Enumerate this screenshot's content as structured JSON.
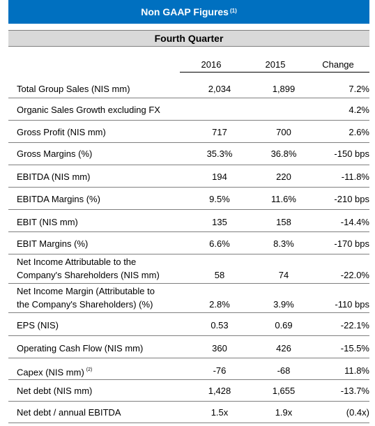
{
  "title": {
    "text": "Non GAAP Figures",
    "note": "(1)"
  },
  "period": "Fourth Quarter",
  "columns": [
    "2016",
    "2015",
    "Change"
  ],
  "rows": [
    {
      "label": "Total Group Sales (NIS mm)",
      "v2016": "2,034",
      "v2015": "1,899",
      "change": "7.2%"
    },
    {
      "label": "Organic Sales Growth excluding FX",
      "v2016": "",
      "v2015": "",
      "change": "4.2%"
    },
    {
      "label": "Gross Profit (NIS mm)",
      "v2016": "717",
      "v2015": "700",
      "change": "2.6%"
    },
    {
      "label": "Gross Margins (%)",
      "v2016": "35.3%",
      "v2015": "36.8%",
      "change": "-150 bps"
    },
    {
      "label": "EBITDA (NIS mm)",
      "v2016": "194",
      "v2015": "220",
      "change": "-11.8%"
    },
    {
      "label": "EBITDA Margins (%)",
      "v2016": "9.5%",
      "v2015": "11.6%",
      "change": "-210 bps"
    },
    {
      "label": "EBIT (NIS mm)",
      "v2016": "135",
      "v2015": "158",
      "change": "-14.4%"
    },
    {
      "label": "EBIT Margins (%)",
      "v2016": "6.6%",
      "v2015": "8.3%",
      "change": "-170 bps"
    },
    {
      "label_line1": "Net Income Attributable to the",
      "label_line2": "Company's Shareholders (NIS mm)",
      "v2016": "58",
      "v2015": "74",
      "change": "-22.0%"
    },
    {
      "label_line1": "Net Income Margin (Attributable to",
      "label_line2": "the Company's Shareholders) (%)",
      "v2016": "2.8%",
      "v2015": "3.9%",
      "change": "-110 bps"
    },
    {
      "label": "EPS (NIS)",
      "v2016": "0.53",
      "v2015": "0.69",
      "change": "-22.1%"
    },
    {
      "label": "Operating Cash Flow (NIS mm)",
      "v2016": "360",
      "v2015": "426",
      "change": "-15.5%"
    },
    {
      "label": "Capex (NIS mm)",
      "note": "(2)",
      "v2016": "-76",
      "v2015": "-68",
      "change": "11.8%"
    },
    {
      "label": "Net debt (NIS mm)",
      "v2016": "1,428",
      "v2015": "1,655",
      "change": "-13.7%"
    },
    {
      "label": "Net debt / annual EBITDA",
      "v2016": "1.5x",
      "v2015": "1.9x",
      "change": "(0.4x)"
    }
  ],
  "colors": {
    "title_bg": "#0070c0",
    "title_text": "#ffffff",
    "quarter_bg": "#d9d9d9",
    "rule": "#7f7f7f"
  }
}
